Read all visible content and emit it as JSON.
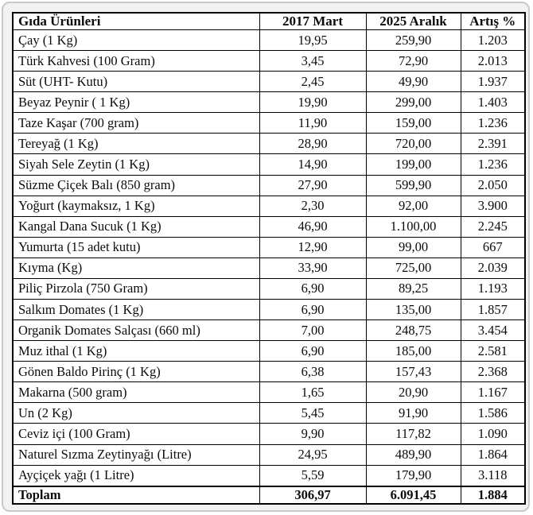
{
  "colors": {
    "table_border": "#000000",
    "table_background": "#ffffff",
    "frame_background": "#f1f2f1",
    "frame_border": "#c9cbc9",
    "text": "#0b0b0b"
  },
  "chart_data": {
    "type": "table",
    "title": "",
    "headers": [
      "Gıda Ürünleri",
      "2017 Mart",
      "2025 Aralık",
      "Artış %"
    ],
    "rows": [
      [
        "Çay (1 Kg)",
        "19,95",
        "259,90",
        "1.203"
      ],
      [
        "Türk Kahvesi (100 Gram)",
        "3,45",
        "72,90",
        "2.013"
      ],
      [
        "Süt (UHT- Kutu)",
        "2,45",
        "49,90",
        "1.937"
      ],
      [
        "Beyaz Peynir ( 1 Kg)",
        "19,90",
        "299,00",
        "1.403"
      ],
      [
        "Taze Kaşar (700 gram)",
        "11,90",
        "159,00",
        "1.236"
      ],
      [
        "Tereyağ (1 Kg)",
        "28,90",
        "720,00",
        "2.391"
      ],
      [
        "Siyah Sele Zeytin (1 Kg)",
        "14,90",
        "199,00",
        "1.236"
      ],
      [
        "Süzme Çiçek Balı (850 gram)",
        "27,90",
        "599,90",
        "2.050"
      ],
      [
        "Yoğurt (kaymaksız, 1 Kg)",
        "2,30",
        "92,00",
        "3.900"
      ],
      [
        "Kangal Dana Sucuk (1 Kg)",
        "46,90",
        "1.100,00",
        "2.245"
      ],
      [
        "Yumurta (15 adet kutu)",
        "12,90",
        "99,00",
        "667"
      ],
      [
        "Kıyma (Kg)",
        "33,90",
        "725,00",
        "2.039"
      ],
      [
        "Piliç Pirzola (750 Gram)",
        "6,90",
        "89,25",
        "1.193"
      ],
      [
        "Salkım Domates (1 Kg)",
        "6,90",
        "135,00",
        "1.857"
      ],
      [
        "Organik Domates Salçası (660 ml)",
        "7,00",
        "248,75",
        "3.454"
      ],
      [
        "Muz ithal (1 Kg)",
        "6,90",
        "185,00",
        "2.581"
      ],
      [
        "Gönen Baldo Pirinç (1 Kg)",
        "6,38",
        "157,43",
        "2.368"
      ],
      [
        "Makarna (500 gram)",
        "1,65",
        "20,90",
        "1.167"
      ],
      [
        "Un (2 Kg)",
        "5,45",
        "91,90",
        "1.586"
      ],
      [
        "Ceviz içi (100 Gram)",
        "9,90",
        "117,82",
        "1.090"
      ],
      [
        "Naturel Sızma Zeytinyağı (Litre)",
        "24,95",
        "489,90",
        "1.864"
      ],
      [
        "Ayçiçek yağı (1 Litre)",
        "5,59",
        "179,90",
        "3.118"
      ]
    ],
    "total_row": [
      "Toplam",
      "306,97",
      "6.091,45",
      "1.884"
    ]
  }
}
